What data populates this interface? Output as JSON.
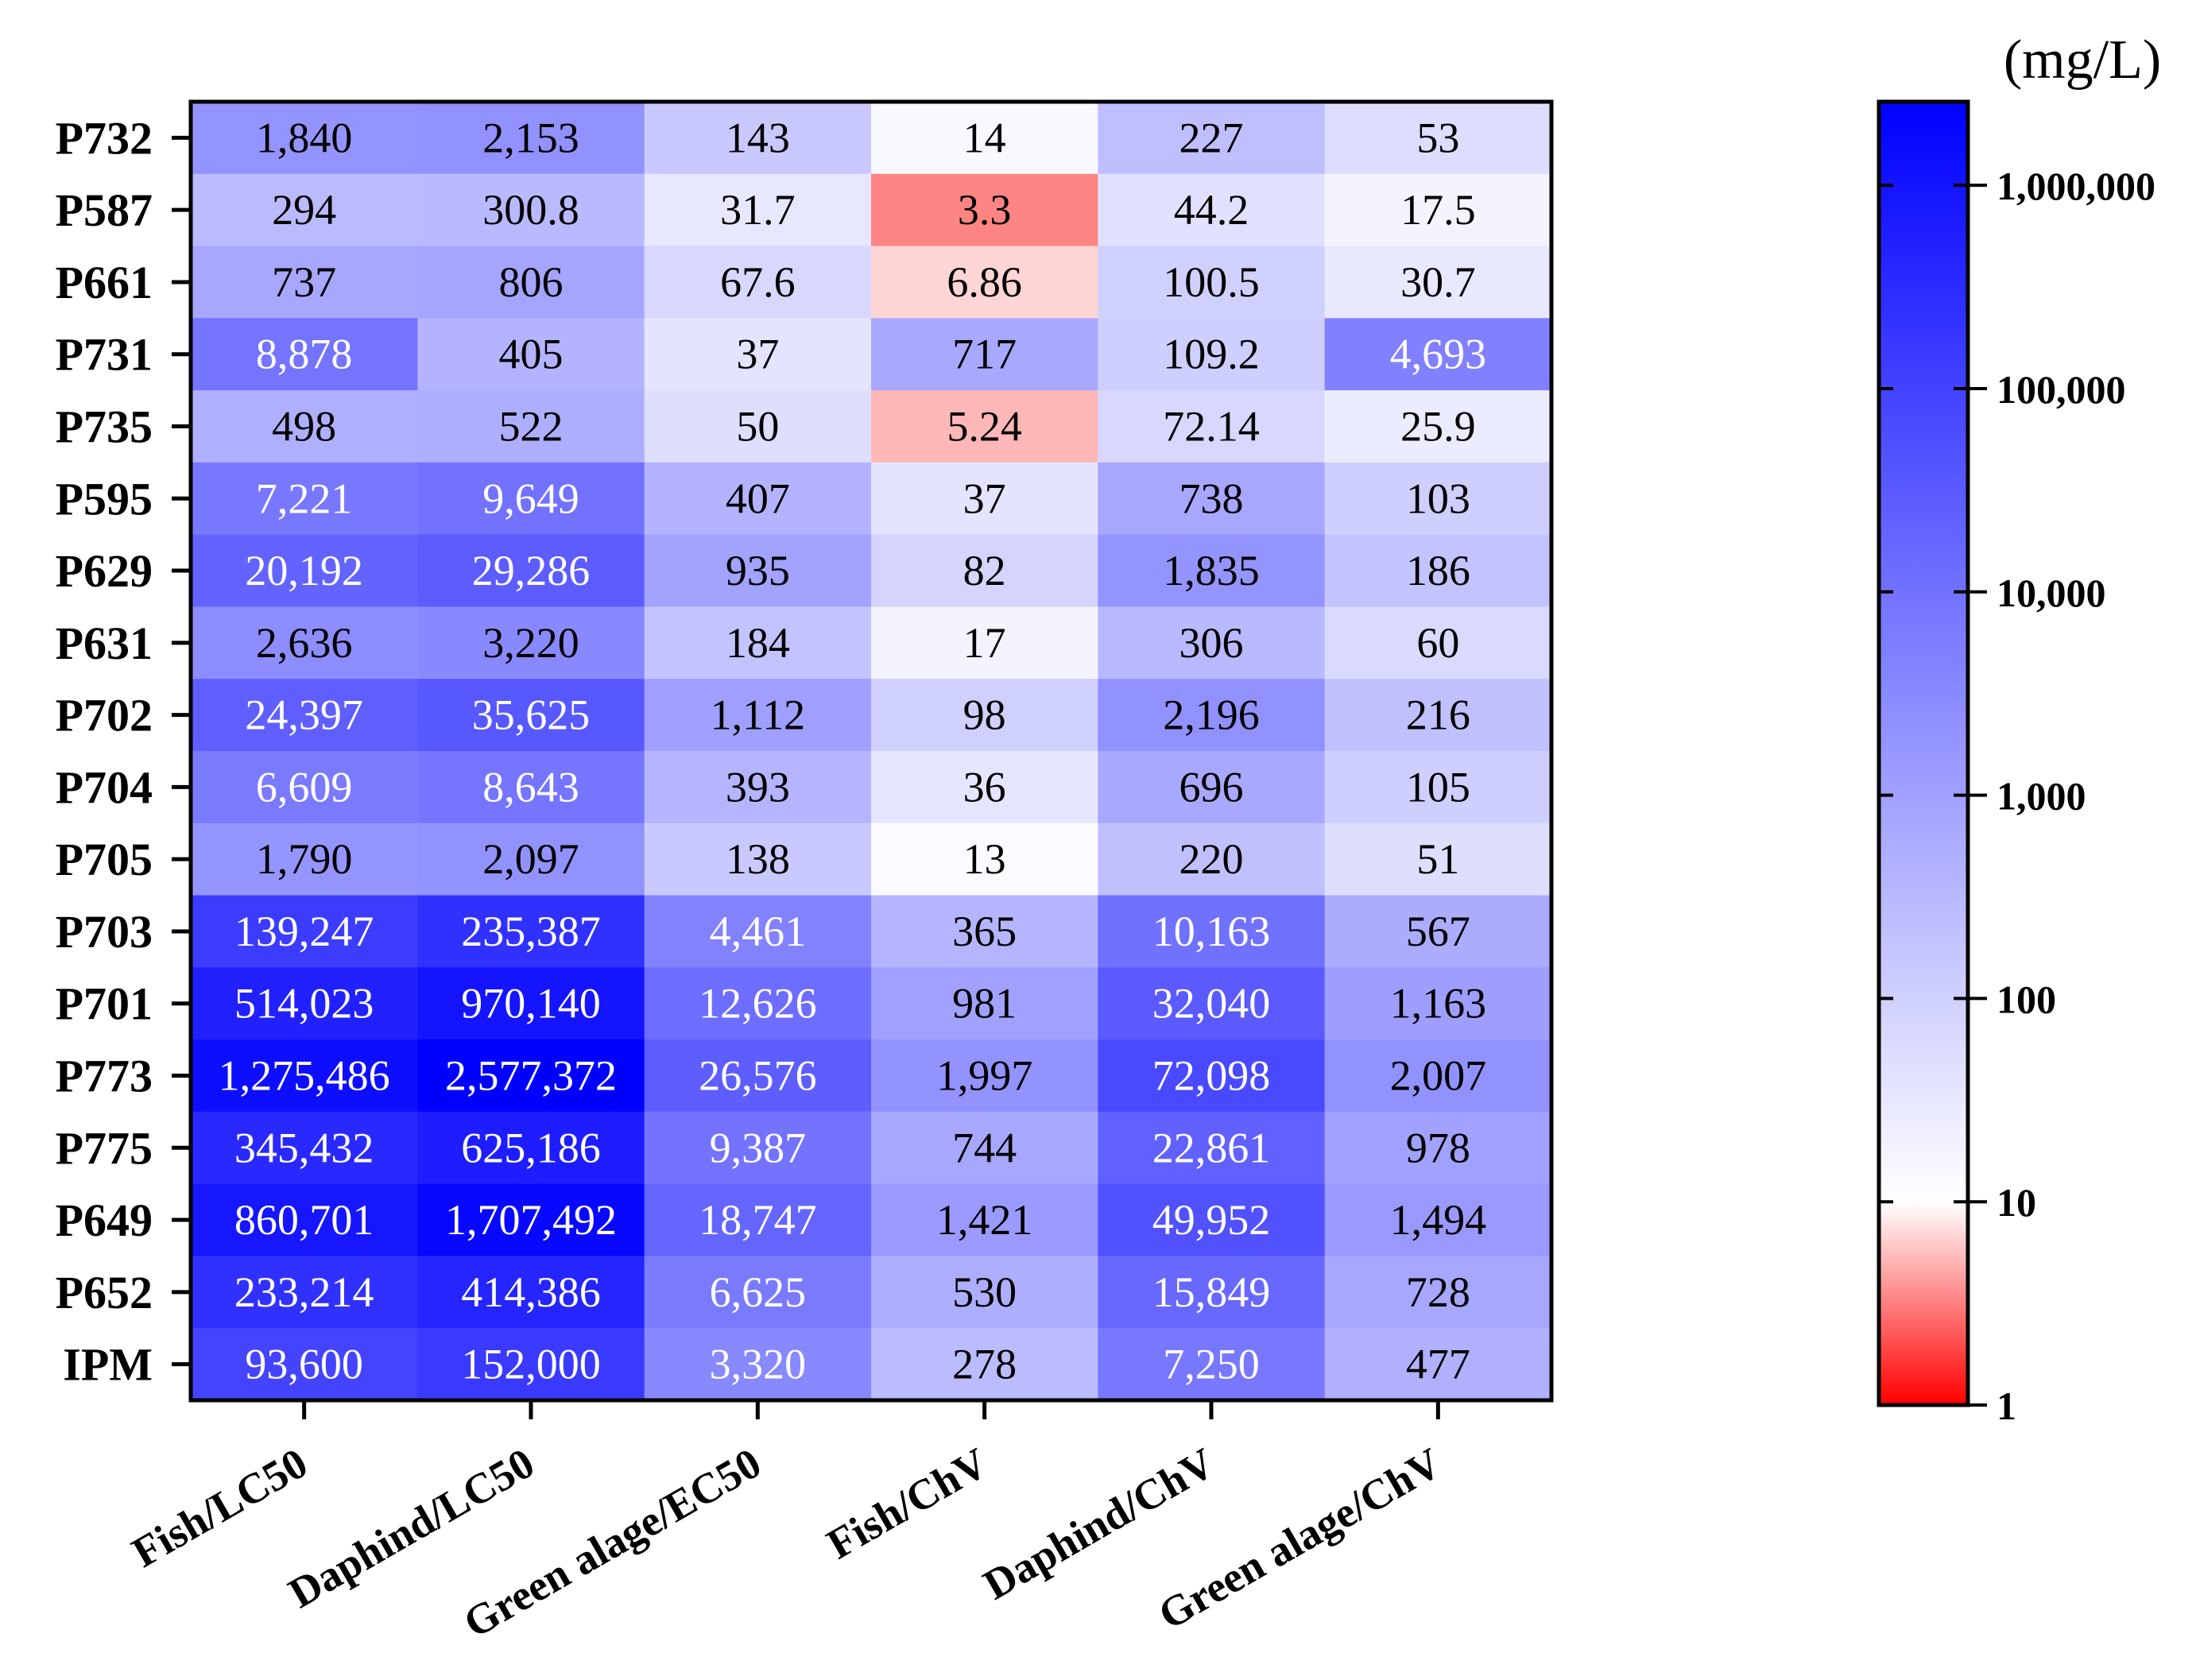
{
  "chart_data": {
    "type": "heatmap",
    "title": "",
    "unit_label": "(mg/L)",
    "rows": [
      "P732",
      "P587",
      "P661",
      "P731",
      "P735",
      "P595",
      "P629",
      "P631",
      "P702",
      "P704",
      "P705",
      "P703",
      "P701",
      "P773",
      "P775",
      "P649",
      "P652",
      "IPM"
    ],
    "columns": [
      "Fish/LC50",
      "Daphind/LC50",
      "Green alage/EC50",
      "Fish/ChV",
      "Daphind/ChV",
      "Green alage/ChV"
    ],
    "values": [
      [
        1840,
        2153,
        143,
        14,
        227,
        53
      ],
      [
        294,
        300.8,
        31.7,
        3.3,
        44.2,
        17.5
      ],
      [
        737,
        806,
        67.6,
        6.86,
        100.5,
        30.7
      ],
      [
        8878,
        405,
        37,
        717,
        109.2,
        4693
      ],
      [
        498,
        522,
        50,
        5.24,
        72.14,
        25.9
      ],
      [
        7221,
        9649,
        407,
        37,
        738,
        103
      ],
      [
        20192,
        29286,
        935,
        82,
        1835,
        186
      ],
      [
        2636,
        3220,
        184,
        17,
        306,
        60
      ],
      [
        24397,
        35625,
        1112,
        98,
        2196,
        216
      ],
      [
        6609,
        8643,
        393,
        36,
        696,
        105
      ],
      [
        1790,
        2097,
        138,
        13,
        220,
        51
      ],
      [
        139247,
        235387,
        4461,
        365,
        10163,
        567
      ],
      [
        514023,
        970140,
        12626,
        981,
        32040,
        1163
      ],
      [
        1275486,
        2577372,
        26576,
        1997,
        72098,
        2007
      ],
      [
        345432,
        625186,
        9387,
        744,
        22861,
        978
      ],
      [
        860701,
        1707492,
        18747,
        1421,
        49952,
        1494
      ],
      [
        233214,
        414386,
        6625,
        530,
        15849,
        728
      ],
      [
        93600,
        152000,
        3320,
        278,
        7250,
        477
      ]
    ],
    "labels": [
      [
        "1,840",
        "2,153",
        "143",
        "14",
        "227",
        "53"
      ],
      [
        "294",
        "300.8",
        "31.7",
        "3.3",
        "44.2",
        "17.5"
      ],
      [
        "737",
        "806",
        "67.6",
        "6.86",
        "100.5",
        "30.7"
      ],
      [
        "8,878",
        "405",
        "37",
        "717",
        "109.2",
        "4,693"
      ],
      [
        "498",
        "522",
        "50",
        "5.24",
        "72.14",
        "25.9"
      ],
      [
        "7,221",
        "9,649",
        "407",
        "37",
        "738",
        "103"
      ],
      [
        "20,192",
        "29,286",
        "935",
        "82",
        "1,835",
        "186"
      ],
      [
        "2,636",
        "3,220",
        "184",
        "17",
        "306",
        "60"
      ],
      [
        "24,397",
        "35,625",
        "1,112",
        "98",
        "2,196",
        "216"
      ],
      [
        "6,609",
        "8,643",
        "393",
        "36",
        "696",
        "105"
      ],
      [
        "1,790",
        "2,097",
        "138",
        "13",
        "220",
        "51"
      ],
      [
        "139,247",
        "235,387",
        "4,461",
        "365",
        "10,163",
        "567"
      ],
      [
        "514,023",
        "970,140",
        "12,626",
        "981",
        "32,040",
        "1,163"
      ],
      [
        "1,275,486",
        "2,577,372",
        "26,576",
        "1,997",
        "72,098",
        "2,007"
      ],
      [
        "345,432",
        "625,186",
        "9,387",
        "744",
        "22,861",
        "978"
      ],
      [
        "860,701",
        "1,707,492",
        "18,747",
        "1,421",
        "49,952",
        "1,494"
      ],
      [
        "233,214",
        "414,386",
        "6,625",
        "530",
        "15,849",
        "728"
      ],
      [
        "93,600",
        "152,000",
        "3,320",
        "278",
        "7,250",
        "477"
      ]
    ],
    "colorbar": {
      "scale": "log",
      "range": [
        1,
        2577372
      ],
      "center": 10,
      "ticks": [
        {
          "value": 1,
          "label": "1"
        },
        {
          "value": 10,
          "label": "10"
        },
        {
          "value": 100,
          "label": "100"
        },
        {
          "value": 1000,
          "label": "1,000"
        },
        {
          "value": 10000,
          "label": "10,000"
        },
        {
          "value": 100000,
          "label": "100,000"
        },
        {
          "value": 1000000,
          "label": "1,000,000"
        }
      ],
      "colors": {
        "low": "#ff0000",
        "mid": "#ffffff",
        "high": "#0000ff"
      }
    }
  }
}
